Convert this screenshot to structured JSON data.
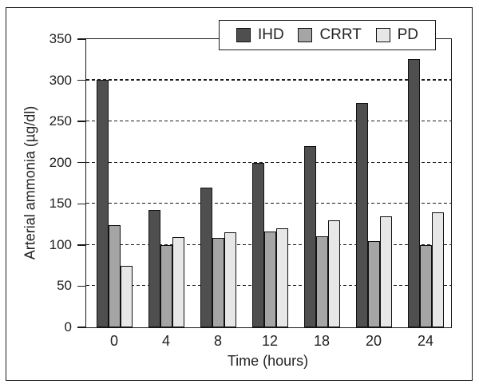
{
  "figure": {
    "background": "#ffffff",
    "border_color": "#1a1a1a"
  },
  "chart_data": {
    "type": "bar",
    "title": "",
    "xlabel": "Time (hours)",
    "ylabel": "Arterial ammonia (µg/dl)",
    "categories": [
      "0",
      "4",
      "8",
      "12",
      "18",
      "20",
      "24"
    ],
    "series": [
      {
        "name": "IHD",
        "color": "#4f4f4f",
        "values": [
          301,
          143,
          170,
          200,
          220,
          272,
          326
        ]
      },
      {
        "name": "CRRT",
        "color": "#a5a5a5",
        "values": [
          124,
          100,
          109,
          116,
          111,
          105,
          100
        ]
      },
      {
        "name": "PD",
        "color": "#e7e7e7",
        "values": [
          75,
          110,
          115,
          120,
          130,
          135,
          140
        ]
      }
    ],
    "ylim": [
      0,
      350
    ],
    "yticks": [
      0,
      50,
      100,
      150,
      200,
      250,
      300,
      350
    ],
    "grid": "horizontal dashed lines at 50-300",
    "legend_position": "top-right overlay inside plot"
  }
}
